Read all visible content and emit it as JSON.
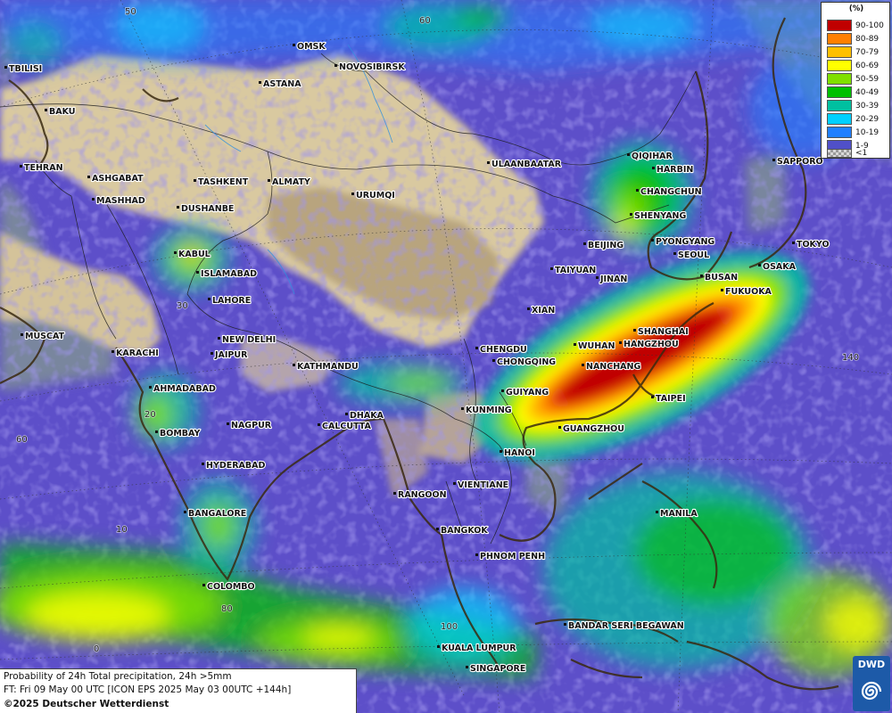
{
  "colors": {
    "ocean_base": "#5d4fc9",
    "ocean_gray": "#7d8c9a",
    "land_tan": "#d9c9a0",
    "land_dark": "#b8a47e",
    "border": "#1a1a1a",
    "coast": "#3a2a10",
    "grid": "#333333"
  },
  "legend": {
    "unit": "(%)",
    "bins": [
      {
        "label": "90-100",
        "color": "#c00000"
      },
      {
        "label": "80-89",
        "color": "#ff8000"
      },
      {
        "label": "70-79",
        "color": "#ffc000"
      },
      {
        "label": "60-69",
        "color": "#ffff00"
      },
      {
        "label": "50-59",
        "color": "#80e000"
      },
      {
        "label": "40-49",
        "color": "#00c000"
      },
      {
        "label": "30-39",
        "color": "#00c0a0"
      },
      {
        "label": "20-29",
        "color": "#00d0ff"
      },
      {
        "label": "10-19",
        "color": "#2080ff"
      },
      {
        "label": "1-9",
        "color": "#5050c8"
      },
      {
        "label": "<1",
        "color": "#b0b0b0"
      }
    ]
  },
  "info": {
    "line1": "Probability of 24h Total precipitation, 24h >5mm",
    "line2": "FT: Fri 09 May 00 UTC [ICON EPS 2025 May 03 00UTC +144h]",
    "line3": "©2025 Deutscher Wetterdienst"
  },
  "logo": {
    "text": "DWD"
  },
  "grid_labels": [
    "50",
    "60",
    "40",
    "30",
    "20",
    "10",
    "0",
    "60",
    "80",
    "100",
    "140"
  ],
  "cities": [
    "OMSK",
    "NOVOSIBIRSK",
    "TBILISI",
    "ASTANA",
    "BAKU",
    "TEHRAN",
    "ASHGABAT",
    "MASHHAD",
    "TASHKENT",
    "ALMATY",
    "DUSHANBE",
    "URUMQI",
    "ULAANBAATAR",
    "QIQIHAR",
    "HARBIN",
    "CHANGCHUN",
    "SHENYANG",
    "SAPPORO",
    "BEIJING",
    "PYONGYANG",
    "SEOUL",
    "TOKYO",
    "TAIYUAN",
    "JINAN",
    "BUSAN",
    "OSAKA",
    "FUKUOKA",
    "KABUL",
    "ISLAMABAD",
    "LAHORE",
    "XIAN",
    "MUSCAT",
    "NEW DELHI",
    "JAIPUR",
    "KARACHI",
    "SHANGHAI",
    "HANGZHOU",
    "WUHAN",
    "CHENGDU",
    "CHONGQING",
    "NANCHANG",
    "KATHMANDU",
    "AHMADABAD",
    "GUIYANG",
    "TAIPEI",
    "DHAKA",
    "KUNMING",
    "CALCUTTA",
    "NAGPUR",
    "BOMBAY",
    "GUANGZHOU",
    "HANOI",
    "HYDERABAD",
    "RANGOON",
    "VIENTIANE",
    "BANGALORE",
    "MANILA",
    "BANGKOK",
    "PHNOM PENH",
    "COLOMBO",
    "BANDAR SERI BEGAWAN",
    "KUALA LUMPUR",
    "SINGAPORE"
  ]
}
